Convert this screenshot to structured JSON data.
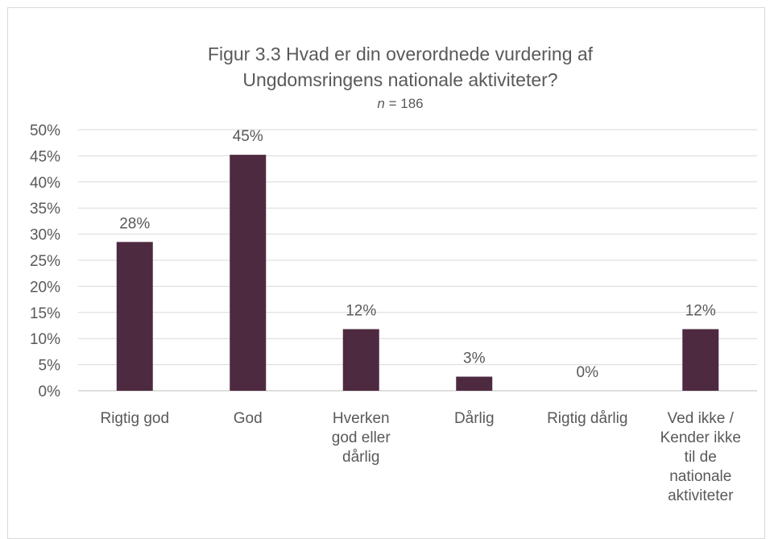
{
  "chart_data": {
    "type": "bar",
    "title_line1": "Figur 3.3 Hvad er din overordnede vurdering af",
    "title_line2": "Ungdomsringens nationale aktiviteter?",
    "subtitle_n": "n",
    "subtitle_rest": " = 186",
    "categories": [
      [
        "Rigtig god"
      ],
      [
        "God"
      ],
      [
        "Hverken",
        "god eller",
        "dårlig"
      ],
      [
        "Dårlig"
      ],
      [
        "Rigtig dårlig"
      ],
      [
        "Ved ikke /",
        "Kender ikke",
        "til de",
        "nationale",
        "aktiviteter"
      ]
    ],
    "values": [
      28.5,
      45.2,
      11.8,
      2.7,
      0,
      11.8
    ],
    "data_labels": [
      "28%",
      "45%",
      "12%",
      "3%",
      "0%",
      "12%"
    ],
    "y_ticks": [
      "0%",
      "5%",
      "10%",
      "15%",
      "20%",
      "25%",
      "30%",
      "35%",
      "40%",
      "45%",
      "50%"
    ],
    "ylim": [
      0,
      50
    ],
    "ytick_step": 5,
    "grid": true,
    "legend": "none",
    "bar_color": "#4e2a40",
    "grid_color": "#d9d9d9",
    "text_color": "#595959"
  }
}
